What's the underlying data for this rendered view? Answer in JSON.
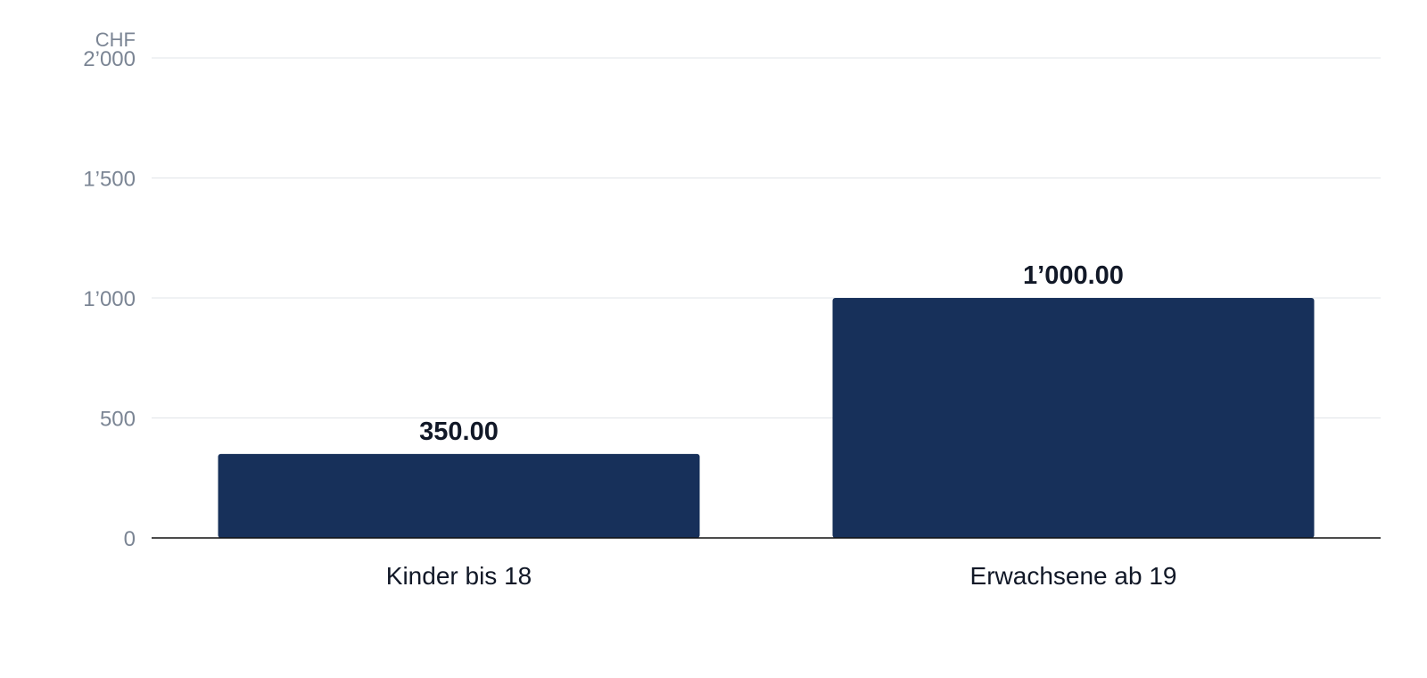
{
  "chart_data": {
    "type": "bar",
    "categories": [
      "Kinder bis 18",
      "Erwachsene ab 19"
    ],
    "values": [
      350,
      1000
    ],
    "value_labels": [
      "350.00",
      "1’000.00"
    ],
    "ylabel": "CHF",
    "ylim": [
      0,
      2000
    ],
    "yticks": [
      0,
      500,
      1000,
      1500,
      2000
    ],
    "ytick_labels": [
      "0",
      "500",
      "1’000",
      "1’500",
      "2’000"
    ],
    "grid": true,
    "legend": "none",
    "bar_color": "#17305a"
  }
}
